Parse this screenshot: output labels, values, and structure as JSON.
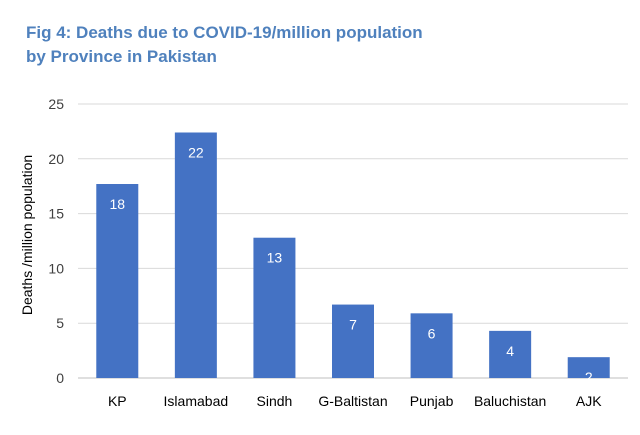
{
  "chart_data": {
    "type": "bar",
    "title_lines": [
      "Fig 4: Deaths due to COVID-19/million population",
      "by Province in Pakistan"
    ],
    "xlabel": "",
    "ylabel": "Deaths /million population",
    "ylim": [
      0,
      25
    ],
    "yticks": [
      0,
      5,
      10,
      15,
      20,
      25
    ],
    "grid": true,
    "legend": "none",
    "bar_color": "#4472c4",
    "categories": [
      "KP",
      "Islamabad",
      "Sindh",
      "G-Baltistan",
      "Punjab",
      "Baluchistan",
      "AJK"
    ],
    "values": [
      17.7,
      22.4,
      12.8,
      6.7,
      5.9,
      4.3,
      1.9
    ],
    "data_labels": [
      "18",
      "22",
      "13",
      "7",
      "6",
      "4",
      "2"
    ]
  }
}
